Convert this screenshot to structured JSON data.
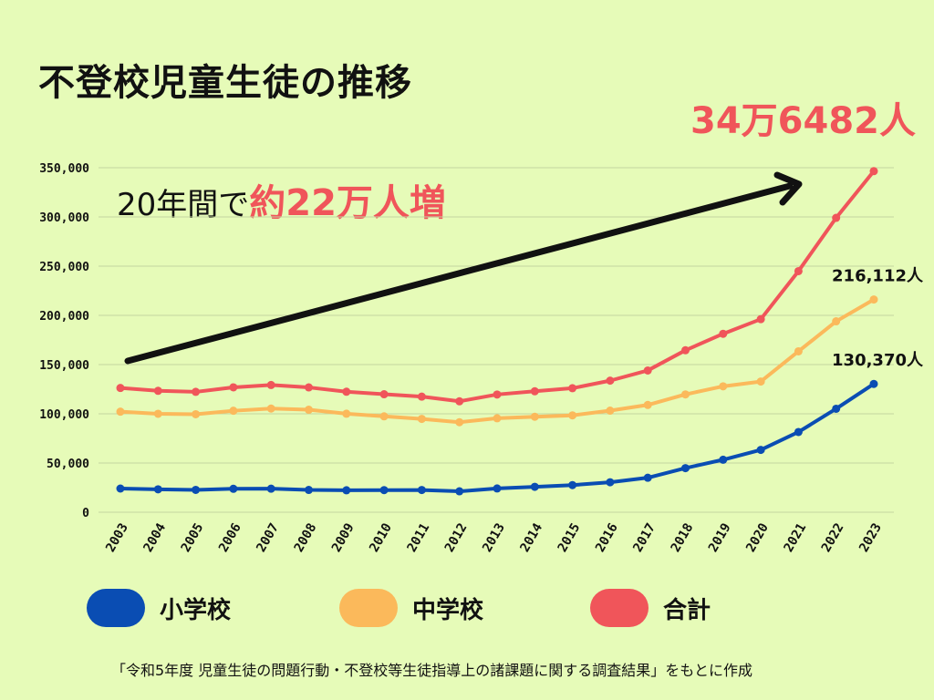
{
  "title": "不登校児童生徒の推移",
  "total_callout": "34万6482人",
  "increase_prefix": "20年間で",
  "increase_emphasis": "約22万人増",
  "source": "「令和5年度 児童生徒の問題行動・不登校等生徒指導上の諸課題に関する調査結果」をもとに作成",
  "colors": {
    "background": "#e6fbb8",
    "elementary": "#0a4db3",
    "junior_high": "#fbb95b",
    "total": "#f0555a",
    "arrow": "#111111"
  },
  "legend": [
    {
      "label": "小学校",
      "color": "#0a4db3"
    },
    {
      "label": "中学校",
      "color": "#fbb95b"
    },
    {
      "label": "合計",
      "color": "#f0555a"
    }
  ],
  "chart_data": {
    "type": "line",
    "title": "不登校児童生徒の推移",
    "xlabel": "",
    "ylabel": "",
    "ylim": [
      0,
      350000
    ],
    "yticks": [
      0,
      50000,
      100000,
      150000,
      200000,
      250000,
      300000,
      350000
    ],
    "ytick_labels": [
      "0",
      "50,000",
      "100,000",
      "150,000",
      "200,000",
      "250,000",
      "300,000",
      "350,000"
    ],
    "grid": true,
    "legend_position": "bottom",
    "x": [
      "2003",
      "2004",
      "2005",
      "2006",
      "2007",
      "2008",
      "2009",
      "2010",
      "2011",
      "2012",
      "2013",
      "2014",
      "2015",
      "2016",
      "2017",
      "2018",
      "2019",
      "2020",
      "2021",
      "2022",
      "2023"
    ],
    "series": [
      {
        "name": "小学校",
        "color": "#0a4db3",
        "values": [
          24077,
          23318,
          22709,
          23825,
          23927,
          22652,
          22327,
          22463,
          22622,
          21243,
          24175,
          25864,
          27583,
          30448,
          35032,
          44841,
          53350,
          63350,
          81498,
          105112,
          130370
        ]
      },
      {
        "name": "中学校",
        "color": "#fbb95b",
        "values": [
          102149,
          100040,
          99578,
          103069,
          105328,
          104153,
          100105,
          97428,
          94836,
          91446,
          95442,
          97033,
          98408,
          103235,
          108999,
          119687,
          127922,
          132777,
          163442,
          193936,
          216112
        ]
      },
      {
        "name": "合計",
        "color": "#f0555a",
        "values": [
          126226,
          123358,
          122287,
          126894,
          129255,
          126805,
          122432,
          119891,
          117458,
          112689,
          119617,
          122897,
          125991,
          133683,
          144031,
          164528,
          181272,
          196127,
          244940,
          299048,
          346482
        ]
      }
    ],
    "annotations": [
      {
        "series": "中学校",
        "x": "2023",
        "text": "216,112人"
      },
      {
        "series": "小学校",
        "x": "2023",
        "text": "130,370人"
      }
    ]
  }
}
